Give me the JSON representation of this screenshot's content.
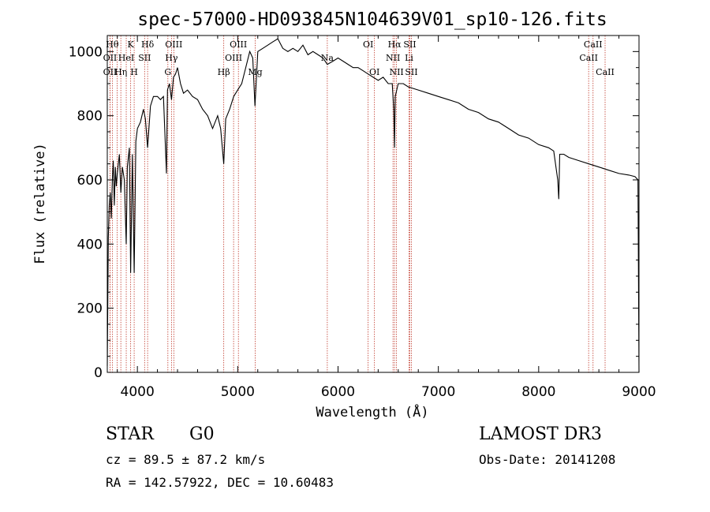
{
  "chart_data": {
    "type": "line",
    "title": "spec-57000-HD093845N104639V01_sp10-126.fits",
    "xlabel": "Wavelength (Å)",
    "ylabel": "Flux (relative)",
    "xlim": [
      3700,
      9000
    ],
    "ylim": [
      0,
      1050
    ],
    "x_ticks": [
      4000,
      5000,
      6000,
      7000,
      8000,
      9000
    ],
    "y_ticks": [
      0,
      200,
      400,
      600,
      800,
      1000
    ],
    "grid": false,
    "series": [
      {
        "x": [
          3700,
          3710,
          3720,
          3730,
          3740,
          3750,
          3760,
          3770,
          3780,
          3790,
          3800,
          3820,
          3835,
          3850,
          3870,
          3889,
          3900,
          3920,
          3933,
          3950,
          3968,
          3985,
          4000,
          4030,
          4060,
          4080,
          4102,
          4130,
          4160,
          4200,
          4230,
          4260,
          4290,
          4300,
          4320,
          4340,
          4360,
          4380,
          4400,
          4430,
          4460,
          4500,
          4550,
          4600,
          4650,
          4700,
          4750,
          4800,
          4830,
          4861,
          4880,
          4920,
          4960,
          5000,
          5040,
          5080,
          5120,
          5150,
          5172,
          5200,
          5250,
          5300,
          5350,
          5400,
          5450,
          5500,
          5550,
          5600,
          5650,
          5700,
          5750,
          5800,
          5850,
          5893,
          5950,
          6000,
          6050,
          6100,
          6150,
          6200,
          6250,
          6300,
          6350,
          6400,
          6450,
          6500,
          6540,
          6555,
          6563,
          6570,
          6600,
          6650,
          6700,
          6800,
          6900,
          7000,
          7100,
          7200,
          7300,
          7400,
          7500,
          7600,
          7700,
          7800,
          7900,
          8000,
          8100,
          8150,
          8190,
          8200,
          8210,
          8250,
          8300,
          8400,
          8500,
          8600,
          8700,
          8800,
          8900,
          8960,
          8990,
          9000
        ],
        "y": [
          20,
          420,
          520,
          560,
          480,
          600,
          660,
          520,
          640,
          580,
          620,
          680,
          560,
          640,
          600,
          400,
          640,
          700,
          310,
          680,
          310,
          720,
          760,
          780,
          820,
          790,
          700,
          830,
          860,
          860,
          850,
          860,
          620,
          880,
          900,
          850,
          920,
          930,
          950,
          900,
          870,
          880,
          860,
          850,
          820,
          800,
          760,
          800,
          760,
          650,
          790,
          820,
          860,
          880,
          900,
          950,
          1000,
          980,
          830,
          1000,
          1010,
          1020,
          1030,
          1040,
          1010,
          1000,
          1010,
          1000,
          1020,
          990,
          1000,
          990,
          980,
          960,
          970,
          980,
          970,
          960,
          950,
          950,
          940,
          930,
          920,
          910,
          920,
          900,
          900,
          820,
          700,
          860,
          900,
          900,
          890,
          880,
          870,
          860,
          850,
          840,
          820,
          810,
          790,
          780,
          760,
          740,
          730,
          710,
          700,
          690,
          600,
          540,
          680,
          680,
          670,
          660,
          650,
          640,
          630,
          620,
          615,
          610,
          600,
          0
        ]
      }
    ],
    "line_markers": [
      {
        "wavelength": 3750,
        "label": "Hθ",
        "row": 0
      },
      {
        "wavelength": 3727,
        "label": "OII",
        "row": 1
      },
      {
        "wavelength": 3727,
        "label": "OII",
        "row": 2
      },
      {
        "wavelength": 3798,
        "label": "",
        "row": 0
      },
      {
        "wavelength": 3835,
        "label": "Hη",
        "row": 2
      },
      {
        "wavelength": 3889,
        "label": "HeI",
        "row": 1
      },
      {
        "wavelength": 3933,
        "label": "K",
        "row": 0
      },
      {
        "wavelength": 3968,
        "label": "H",
        "row": 2
      },
      {
        "wavelength": 4072,
        "label": "SII",
        "row": 1
      },
      {
        "wavelength": 4102,
        "label": "Hδ",
        "row": 0
      },
      {
        "wavelength": 4304,
        "label": "G",
        "row": 2
      },
      {
        "wavelength": 4340,
        "label": "Hγ",
        "row": 1
      },
      {
        "wavelength": 4363,
        "label": "OIII",
        "row": 0
      },
      {
        "wavelength": 4861,
        "label": "Hβ",
        "row": 2
      },
      {
        "wavelength": 4959,
        "label": "OIII",
        "row": 1
      },
      {
        "wavelength": 5007,
        "label": "OIII",
        "row": 0
      },
      {
        "wavelength": 5175,
        "label": "Mg",
        "row": 2
      },
      {
        "wavelength": 5893,
        "label": "Na",
        "row": 1
      },
      {
        "wavelength": 6300,
        "label": "OI",
        "row": 0
      },
      {
        "wavelength": 6363,
        "label": "OI",
        "row": 2
      },
      {
        "wavelength": 6548,
        "label": "NII",
        "row": 1
      },
      {
        "wavelength": 6563,
        "label": "Hα",
        "row": 0
      },
      {
        "wavelength": 6583,
        "label": "NII",
        "row": 2
      },
      {
        "wavelength": 6708,
        "label": "Li",
        "row": 1
      },
      {
        "wavelength": 6716,
        "label": "SII",
        "row": 0
      },
      {
        "wavelength": 6731,
        "label": "SII",
        "row": 2
      },
      {
        "wavelength": 8498,
        "label": "CaII",
        "row": 1
      },
      {
        "wavelength": 8542,
        "label": "CaII",
        "row": 0
      },
      {
        "wavelength": 8662,
        "label": "CaII",
        "row": 2
      }
    ],
    "legend": "none"
  },
  "info": {
    "class": "STAR",
    "subclass": "G0",
    "survey": "LAMOST DR3",
    "cz": "cz = 89.5 ± 87.2 km/s",
    "obs_date": "Obs-Date: 20141208",
    "radec": "RA = 142.57922, DEC =  10.60483"
  },
  "colors": {
    "marker_line": "#c0392b",
    "spectrum": "#000000"
  }
}
